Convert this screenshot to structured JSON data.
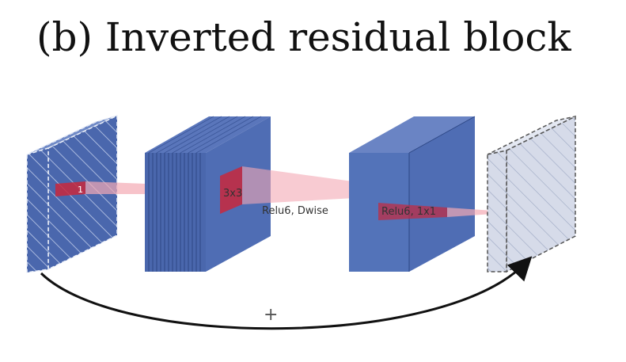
{
  "title": "(b) Inverted residual block",
  "labels": {
    "input_kernel": "1",
    "dwise_kernel": "3x3",
    "dwise_op": "Relu6, Dwise",
    "project_op": "Relu6, 1x1",
    "residual_sign": "+"
  },
  "blocks": [
    {
      "name": "input-block",
      "description": "thin hatched input tensor"
    },
    {
      "name": "expansion-block",
      "description": "expanded many-channel tensor"
    },
    {
      "name": "depthwise-output-block",
      "description": "depthwise conv output"
    },
    {
      "name": "output-block",
      "description": "thin hatched light output tensor"
    }
  ],
  "colors": {
    "block_face": "#4f6db4",
    "block_top": "#6a84c4",
    "block_side": "#3d5a9e",
    "light_face": "#d6dbe9",
    "light_top": "#e4e8f2",
    "kernel_red": "#c8283c",
    "projection_pink": "#f4a9b4",
    "arrow": "#111111"
  }
}
